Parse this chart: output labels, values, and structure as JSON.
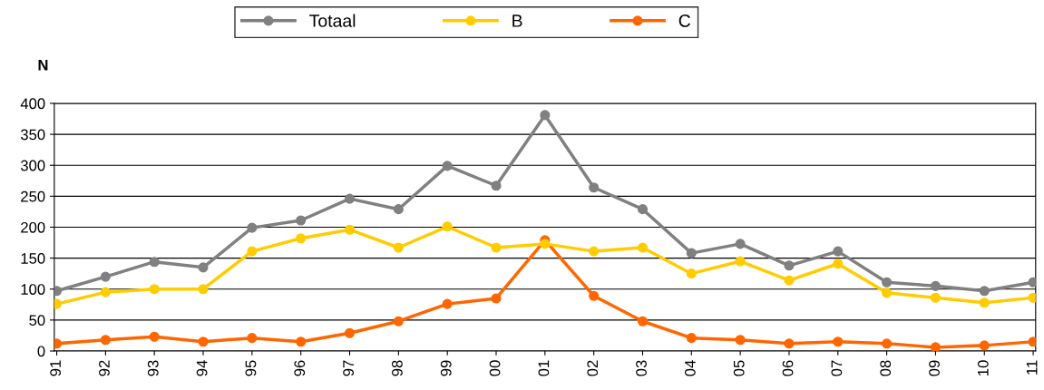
{
  "chart_data": {
    "type": "line",
    "ylabel": "N",
    "categories": [
      "91",
      "92",
      "93",
      "94",
      "95",
      "96",
      "97",
      "98",
      "99",
      "00",
      "01",
      "02",
      "03",
      "04",
      "05",
      "06",
      "07",
      "08",
      "09",
      "10",
      "11"
    ],
    "series": [
      {
        "name": "Totaal",
        "color": "#808080",
        "values": [
          97,
          120,
          144,
          135,
          199,
          211,
          246,
          229,
          299,
          267,
          381,
          264,
          229,
          158,
          173,
          138,
          161,
          111,
          105,
          97,
          111
        ]
      },
      {
        "name": "B",
        "color": "#ffcc00",
        "values": [
          76,
          95,
          100,
          100,
          161,
          182,
          196,
          167,
          201,
          167,
          173,
          161,
          167,
          125,
          145,
          114,
          141,
          94,
          86,
          78,
          86
        ]
      },
      {
        "name": "C",
        "color": "#ff6600",
        "values": [
          12,
          18,
          23,
          15,
          21,
          15,
          29,
          48,
          76,
          85,
          179,
          89,
          48,
          21,
          18,
          12,
          15,
          12,
          6,
          9,
          15
        ]
      }
    ],
    "ylim": [
      0,
      400
    ],
    "yticks": [
      0,
      50,
      100,
      150,
      200,
      250,
      300,
      350,
      400
    ],
    "grid": "y",
    "legend": "top",
    "marker": "circle",
    "line_style": "solid"
  }
}
